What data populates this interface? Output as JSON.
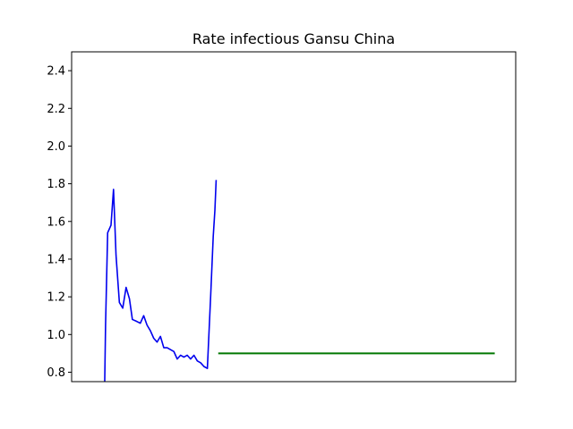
{
  "chart_data": {
    "type": "line",
    "title": "Rate infectious Gansu China",
    "xlabel": "",
    "ylabel": "",
    "ylim": [
      0.75,
      2.5
    ],
    "xlim": [
      -3,
      103
    ],
    "x_ticks_visible": false,
    "y_ticks": [
      0.8,
      1.0,
      1.2,
      1.4,
      1.6,
      1.8,
      2.0,
      2.2,
      2.4
    ],
    "y_tick_labels": [
      "0.8",
      "1.0",
      "1.2",
      "1.4",
      "1.6",
      "1.8",
      "2.0",
      "2.2",
      "2.4"
    ],
    "grid": false,
    "legend": "none",
    "series": [
      {
        "color": "#0000ee",
        "x": [
          4.9,
          5.1,
          5.6,
          6.4,
          7.0,
          7.6,
          8.4,
          9.2,
          10.0,
          10.8,
          11.5,
          12.5,
          13.4,
          14.2,
          15.0,
          15.8,
          16.6,
          17.4,
          18.2,
          19.0,
          19.8,
          20.6,
          21.4,
          22.2,
          23.0,
          23.8,
          24.6,
          25.4,
          26.2,
          27.0,
          27.8,
          28.6,
          29.4,
          30.2,
          30.8,
          31.2,
          31.5
        ],
        "values": [
          0.75,
          1.05,
          1.54,
          1.58,
          1.77,
          1.42,
          1.17,
          1.14,
          1.25,
          1.19,
          1.08,
          1.07,
          1.06,
          1.1,
          1.05,
          1.02,
          0.98,
          0.96,
          0.99,
          0.93,
          0.93,
          0.92,
          0.91,
          0.87,
          0.89,
          0.88,
          0.89,
          0.87,
          0.89,
          0.86,
          0.85,
          0.83,
          0.82,
          1.21,
          1.52,
          1.66,
          1.82
        ]
      },
      {
        "color": "#007700",
        "x": [
          32,
          98
        ],
        "values": [
          0.9,
          0.9
        ]
      }
    ]
  }
}
